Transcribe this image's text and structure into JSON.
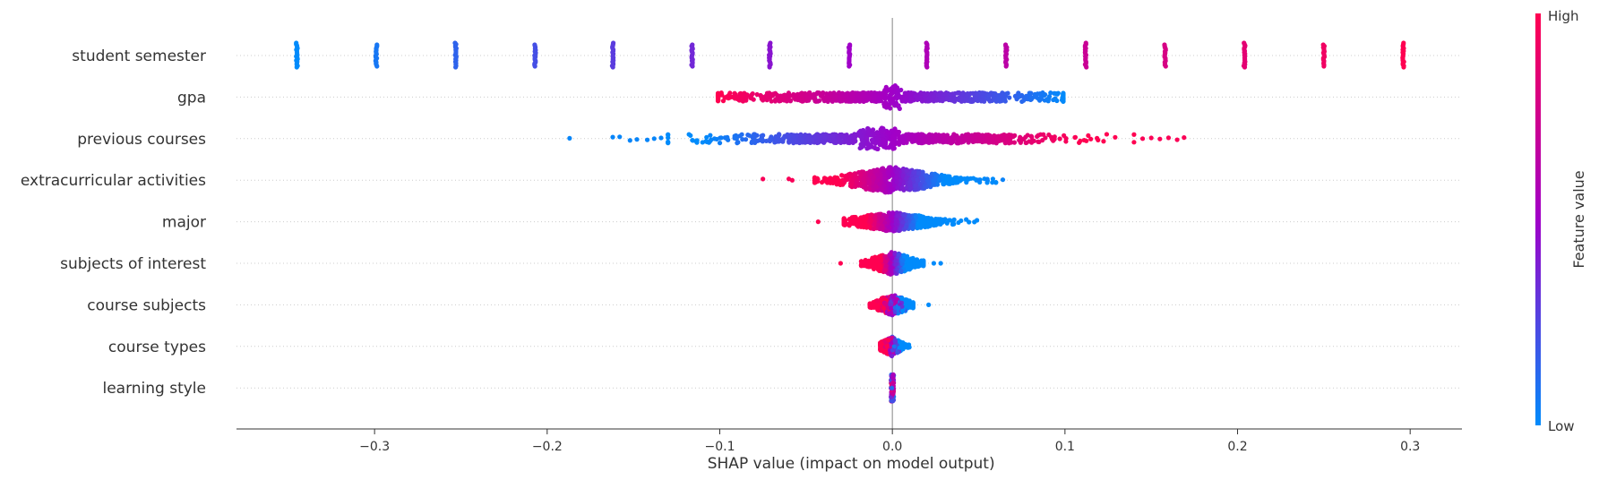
{
  "chart_data": {
    "type": "scatter",
    "subtype": "shap-summary-beeswarm",
    "xlabel": "SHAP value (impact on model output)",
    "xlim": [
      -0.38,
      0.33
    ],
    "xticks": [
      {
        "value": -0.3,
        "label": "−0.3"
      },
      {
        "value": -0.2,
        "label": "−0.2"
      },
      {
        "value": -0.1,
        "label": "−0.1"
      },
      {
        "value": 0.0,
        "label": "0.0"
      },
      {
        "value": 0.1,
        "label": "0.1"
      },
      {
        "value": 0.2,
        "label": "0.2"
      },
      {
        "value": 0.3,
        "label": "0.3"
      }
    ],
    "features": [
      {
        "name": "student semester"
      },
      {
        "name": "gpa"
      },
      {
        "name": "previous courses"
      },
      {
        "name": "extracurricular activities"
      },
      {
        "name": "major"
      },
      {
        "name": "subjects of interest"
      },
      {
        "name": "course subjects"
      },
      {
        "name": "course types"
      },
      {
        "name": "learning style"
      }
    ],
    "colorbar": {
      "title": "Feature value",
      "high_label": "High",
      "low_label": "Low",
      "low_color": "#008bfb",
      "high_color": "#ff0051"
    },
    "grid": "dotted horizontal per feature",
    "zero_line": true
  }
}
